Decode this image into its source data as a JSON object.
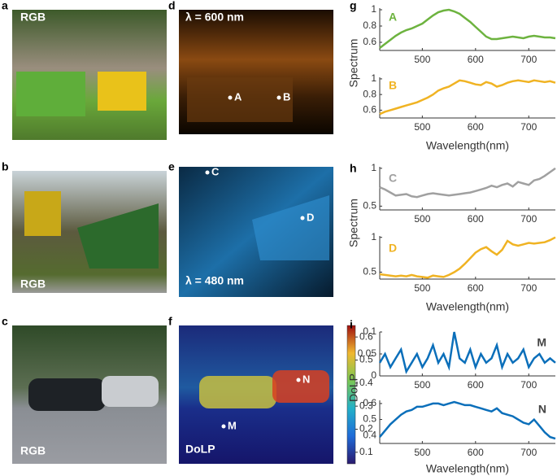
{
  "image_panels": [
    {
      "letter": "a",
      "caption": "RGB"
    },
    {
      "letter": "b",
      "caption": "RGB"
    },
    {
      "letter": "c",
      "caption": "RGB"
    },
    {
      "letter": "d",
      "caption": "λ = 600 nm",
      "points": [
        "A",
        "B"
      ]
    },
    {
      "letter": "e",
      "caption": "λ = 480 nm",
      "points": [
        "C",
        "D"
      ]
    },
    {
      "letter": "f",
      "caption": "DoLP",
      "points": [
        "M",
        "N"
      ]
    }
  ],
  "plot_panels": [
    "g",
    "h",
    "i"
  ],
  "colorbar": {
    "lim": [
      0.05,
      0.65
    ],
    "ticks": [
      0.1,
      0.2,
      0.3,
      0.4,
      0.5,
      0.6
    ]
  },
  "chart_data": [
    {
      "type": "line",
      "label": "A",
      "color": "#6db33f",
      "ylabel": "Spectrum",
      "x": [
        420,
        430,
        440,
        450,
        460,
        470,
        480,
        490,
        500,
        510,
        520,
        530,
        540,
        550,
        560,
        570,
        580,
        590,
        600,
        610,
        620,
        630,
        640,
        650,
        660,
        670,
        680,
        690,
        700,
        710,
        720,
        730,
        740,
        750
      ],
      "values": [
        0.53,
        0.58,
        0.63,
        0.68,
        0.72,
        0.75,
        0.77,
        0.8,
        0.83,
        0.88,
        0.93,
        0.97,
        0.99,
        1.0,
        0.98,
        0.95,
        0.9,
        0.85,
        0.79,
        0.73,
        0.67,
        0.64,
        0.64,
        0.65,
        0.66,
        0.67,
        0.66,
        0.65,
        0.67,
        0.68,
        0.67,
        0.66,
        0.66,
        0.65
      ],
      "xlim": [
        420,
        750
      ],
      "ylim": [
        0.5,
        1.02
      ],
      "xticks": [
        500,
        600,
        700
      ],
      "yticks": [
        0.6,
        0.8,
        1
      ]
    },
    {
      "type": "line",
      "label": "B",
      "color": "#f0b323",
      "xlabel": "Wavelength(nm)",
      "x": [
        420,
        430,
        440,
        450,
        460,
        470,
        480,
        490,
        500,
        510,
        520,
        530,
        540,
        550,
        560,
        570,
        580,
        590,
        600,
        610,
        620,
        630,
        640,
        650,
        660,
        670,
        680,
        690,
        700,
        710,
        720,
        730,
        740,
        750
      ],
      "values": [
        0.55,
        0.58,
        0.6,
        0.62,
        0.64,
        0.66,
        0.68,
        0.7,
        0.73,
        0.76,
        0.8,
        0.85,
        0.88,
        0.9,
        0.94,
        0.98,
        0.97,
        0.95,
        0.93,
        0.92,
        0.96,
        0.94,
        0.9,
        0.92,
        0.95,
        0.97,
        0.98,
        0.97,
        0.96,
        0.98,
        0.97,
        0.96,
        0.97,
        0.95
      ],
      "xlim": [
        420,
        750
      ],
      "ylim": [
        0.5,
        1.02
      ],
      "xticks": [
        500,
        600,
        700
      ],
      "yticks": [
        0.6,
        0.8,
        1
      ]
    },
    {
      "type": "line",
      "label": "C",
      "color": "#a0a0a0",
      "ylabel": "Spectrum",
      "x": [
        420,
        430,
        440,
        450,
        460,
        470,
        480,
        490,
        500,
        510,
        520,
        530,
        540,
        550,
        560,
        570,
        580,
        590,
        600,
        610,
        620,
        630,
        640,
        650,
        660,
        670,
        680,
        690,
        700,
        710,
        720,
        730,
        740,
        750
      ],
      "values": [
        0.75,
        0.72,
        0.68,
        0.64,
        0.65,
        0.66,
        0.63,
        0.62,
        0.64,
        0.66,
        0.67,
        0.66,
        0.65,
        0.64,
        0.65,
        0.66,
        0.67,
        0.68,
        0.7,
        0.72,
        0.74,
        0.77,
        0.75,
        0.78,
        0.8,
        0.76,
        0.82,
        0.8,
        0.78,
        0.84,
        0.86,
        0.9,
        0.95,
        1.0
      ],
      "xlim": [
        420,
        750
      ],
      "ylim": [
        0.45,
        1.02
      ],
      "xticks": [
        500,
        600,
        700
      ],
      "yticks": [
        0.5,
        1
      ]
    },
    {
      "type": "line",
      "label": "D",
      "color": "#f0b323",
      "xlabel": "Wavelength(nm)",
      "x": [
        420,
        430,
        440,
        450,
        460,
        470,
        480,
        490,
        500,
        510,
        520,
        530,
        540,
        550,
        560,
        570,
        580,
        590,
        600,
        610,
        620,
        630,
        640,
        650,
        660,
        670,
        680,
        690,
        700,
        710,
        720,
        730,
        740,
        750
      ],
      "values": [
        0.47,
        0.46,
        0.45,
        0.44,
        0.45,
        0.44,
        0.46,
        0.44,
        0.43,
        0.42,
        0.45,
        0.44,
        0.43,
        0.46,
        0.5,
        0.55,
        0.62,
        0.7,
        0.78,
        0.83,
        0.86,
        0.8,
        0.75,
        0.82,
        0.95,
        0.9,
        0.88,
        0.9,
        0.92,
        0.91,
        0.92,
        0.93,
        0.96,
        1.0
      ],
      "xlim": [
        420,
        750
      ],
      "ylim": [
        0.4,
        1.02
      ],
      "xticks": [
        500,
        600,
        700
      ],
      "yticks": [
        0.5,
        1
      ]
    },
    {
      "type": "line",
      "label": "M",
      "label_color": "#444444",
      "color": "#0b6fba",
      "ylabel": "DoLP",
      "x": [
        420,
        430,
        440,
        450,
        460,
        470,
        480,
        490,
        500,
        510,
        520,
        530,
        540,
        550,
        560,
        570,
        580,
        590,
        600,
        610,
        620,
        630,
        640,
        650,
        660,
        670,
        680,
        690,
        700,
        710,
        720,
        730,
        740,
        750
      ],
      "values": [
        0.03,
        0.05,
        0.02,
        0.04,
        0.06,
        0.01,
        0.03,
        0.05,
        0.02,
        0.04,
        0.07,
        0.03,
        0.05,
        0.02,
        0.1,
        0.04,
        0.03,
        0.06,
        0.02,
        0.05,
        0.03,
        0.04,
        0.07,
        0.02,
        0.05,
        0.03,
        0.04,
        0.06,
        0.02,
        0.04,
        0.05,
        0.03,
        0.04,
        0.03
      ],
      "xlim": [
        420,
        750
      ],
      "ylim": [
        0,
        0.1
      ],
      "xticks": [
        500,
        600,
        700
      ],
      "yticks": [
        0,
        0.05,
        0.1
      ]
    },
    {
      "type": "line",
      "label": "N",
      "label_color": "#444444",
      "color": "#0b6fba",
      "xlabel": "Wavelength(nm)",
      "x": [
        420,
        430,
        440,
        450,
        460,
        470,
        480,
        490,
        500,
        510,
        520,
        530,
        540,
        550,
        560,
        570,
        580,
        590,
        600,
        610,
        620,
        630,
        640,
        650,
        660,
        670,
        680,
        690,
        700,
        710,
        720,
        730,
        740,
        750
      ],
      "values": [
        0.39,
        0.43,
        0.47,
        0.5,
        0.53,
        0.55,
        0.56,
        0.58,
        0.58,
        0.59,
        0.6,
        0.6,
        0.59,
        0.6,
        0.61,
        0.6,
        0.59,
        0.59,
        0.58,
        0.57,
        0.56,
        0.55,
        0.57,
        0.54,
        0.53,
        0.52,
        0.5,
        0.48,
        0.47,
        0.5,
        0.46,
        0.42,
        0.39,
        0.38
      ],
      "xlim": [
        420,
        750
      ],
      "ylim": [
        0.35,
        0.62
      ],
      "xticks": [
        500,
        600,
        700
      ],
      "yticks": [
        0.4,
        0.5,
        0.6
      ]
    }
  ]
}
